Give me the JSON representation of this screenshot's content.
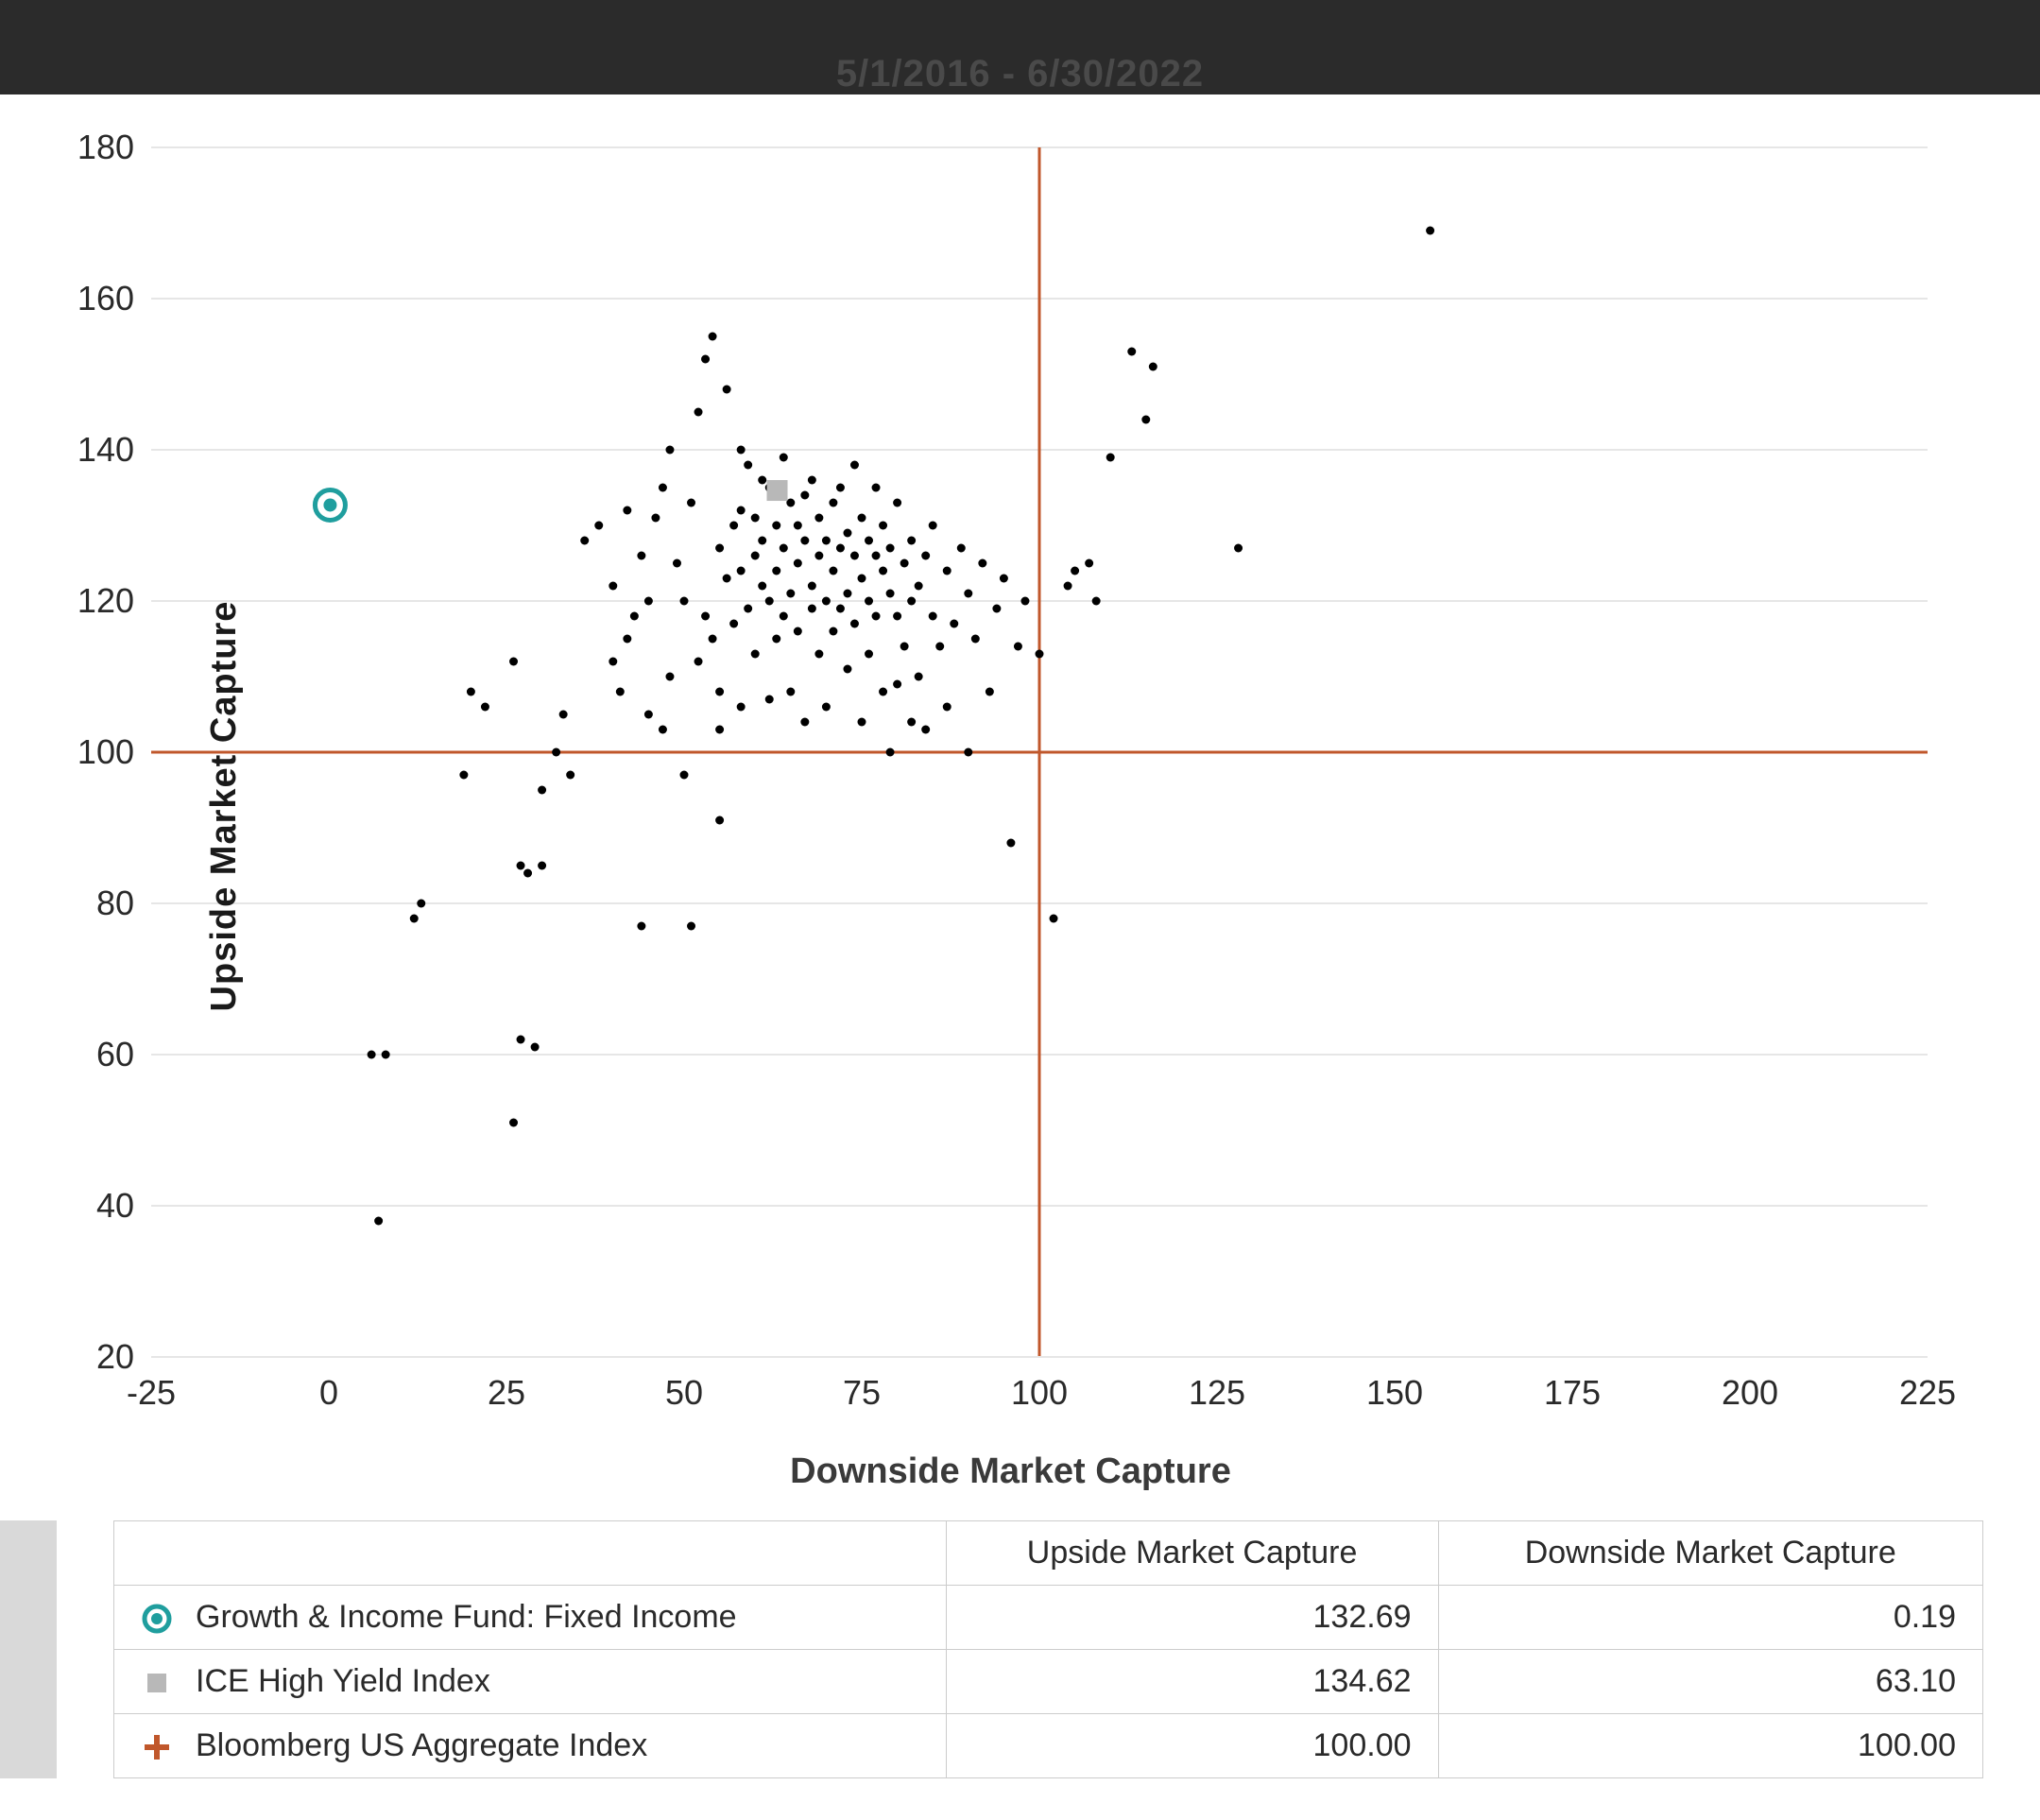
{
  "header": {
    "subtitle_cut": "5/1/2016 - 6/30/2022"
  },
  "chart": {
    "type": "scatter",
    "y_axis_label": "Upside Market Capture",
    "x_axis_label": "Downside Market Capture",
    "xlim": [
      -25,
      225
    ],
    "ylim": [
      20,
      180
    ],
    "xticks": [
      -25,
      0,
      25,
      50,
      75,
      100,
      125,
      150,
      175,
      200,
      225
    ],
    "yticks": [
      20,
      40,
      60,
      80,
      100,
      120,
      140,
      160,
      180
    ],
    "background_color": "#ffffff",
    "grid_color": "#e6e6e6",
    "axis_color": "#555555",
    "tick_font_size": 36,
    "tick_color": "#2a2a2a",
    "reference_lines": {
      "x": 100,
      "y": 100,
      "color": "#c0572b",
      "width": 3
    },
    "scatter_series": {
      "color": "#000000",
      "radius": 4.5,
      "points": [
        [
          7,
          38
        ],
        [
          12,
          78
        ],
        [
          13,
          80
        ],
        [
          6,
          60
        ],
        [
          8,
          60
        ],
        [
          22,
          106
        ],
        [
          20,
          108
        ],
        [
          26,
          112
        ],
        [
          27,
          85
        ],
        [
          28,
          84
        ],
        [
          30,
          85
        ],
        [
          19,
          97
        ],
        [
          32,
          100
        ],
        [
          34,
          97
        ],
        [
          30,
          95
        ],
        [
          33,
          105
        ],
        [
          27,
          62
        ],
        [
          29,
          61
        ],
        [
          26,
          51
        ],
        [
          36,
          128
        ],
        [
          38,
          130
        ],
        [
          40,
          122
        ],
        [
          41,
          108
        ],
        [
          42,
          115
        ],
        [
          43,
          118
        ],
        [
          44,
          126
        ],
        [
          45,
          120
        ],
        [
          46,
          131
        ],
        [
          47,
          135
        ],
        [
          48,
          140
        ],
        [
          48,
          110
        ],
        [
          49,
          125
        ],
        [
          50,
          97
        ],
        [
          50,
          120
        ],
        [
          51,
          133
        ],
        [
          52,
          145
        ],
        [
          52,
          112
        ],
        [
          53,
          118
        ],
        [
          53,
          152
        ],
        [
          54,
          115
        ],
        [
          54,
          155
        ],
        [
          55,
          127
        ],
        [
          55,
          108
        ],
        [
          55,
          91
        ],
        [
          56,
          123
        ],
        [
          56,
          148
        ],
        [
          57,
          130
        ],
        [
          57,
          117
        ],
        [
          58,
          124
        ],
        [
          58,
          140
        ],
        [
          58,
          106
        ],
        [
          59,
          119
        ],
        [
          59,
          138
        ],
        [
          60,
          126
        ],
        [
          60,
          131
        ],
        [
          60,
          113
        ],
        [
          61,
          122
        ],
        [
          61,
          128
        ],
        [
          61,
          136
        ],
        [
          62,
          135
        ],
        [
          62,
          120
        ],
        [
          62,
          107
        ],
        [
          63,
          130
        ],
        [
          63,
          115
        ],
        [
          63,
          124
        ],
        [
          64,
          127
        ],
        [
          64,
          118
        ],
        [
          64,
          139
        ],
        [
          65,
          121
        ],
        [
          65,
          133
        ],
        [
          65,
          108
        ],
        [
          66,
          125
        ],
        [
          66,
          130
        ],
        [
          66,
          116
        ],
        [
          67,
          128
        ],
        [
          67,
          134
        ],
        [
          67,
          104
        ],
        [
          68,
          122
        ],
        [
          68,
          119
        ],
        [
          68,
          136
        ],
        [
          69,
          126
        ],
        [
          69,
          113
        ],
        [
          69,
          131
        ],
        [
          70,
          120
        ],
        [
          70,
          128
        ],
        [
          70,
          106
        ],
        [
          71,
          124
        ],
        [
          71,
          133
        ],
        [
          71,
          116
        ],
        [
          72,
          127
        ],
        [
          72,
          119
        ],
        [
          72,
          135
        ],
        [
          73,
          121
        ],
        [
          73,
          129
        ],
        [
          73,
          111
        ],
        [
          74,
          126
        ],
        [
          74,
          117
        ],
        [
          74,
          138
        ],
        [
          75,
          123
        ],
        [
          75,
          131
        ],
        [
          75,
          104
        ],
        [
          76,
          120
        ],
        [
          76,
          128
        ],
        [
          76,
          113
        ],
        [
          77,
          126
        ],
        [
          77,
          118
        ],
        [
          77,
          135
        ],
        [
          78,
          124
        ],
        [
          78,
          108
        ],
        [
          78,
          130
        ],
        [
          79,
          121
        ],
        [
          79,
          127
        ],
        [
          79,
          100
        ],
        [
          80,
          118
        ],
        [
          80,
          133
        ],
        [
          80,
          109
        ],
        [
          81,
          125
        ],
        [
          81,
          114
        ],
        [
          82,
          128
        ],
        [
          82,
          104
        ],
        [
          82,
          120
        ],
        [
          83,
          122
        ],
        [
          83,
          110
        ],
        [
          84,
          126
        ],
        [
          84,
          103
        ],
        [
          85,
          118
        ],
        [
          85,
          130
        ],
        [
          86,
          114
        ],
        [
          87,
          124
        ],
        [
          87,
          106
        ],
        [
          88,
          117
        ],
        [
          89,
          127
        ],
        [
          90,
          121
        ],
        [
          90,
          100
        ],
        [
          91,
          115
        ],
        [
          92,
          125
        ],
        [
          93,
          108
        ],
        [
          94,
          119
        ],
        [
          95,
          123
        ],
        [
          96,
          88
        ],
        [
          97,
          114
        ],
        [
          98,
          120
        ],
        [
          100,
          113
        ],
        [
          102,
          78
        ],
        [
          104,
          122
        ],
        [
          105,
          124
        ],
        [
          107,
          125
        ],
        [
          108,
          120
        ],
        [
          110,
          139
        ],
        [
          113,
          153
        ],
        [
          115,
          144
        ],
        [
          116,
          151
        ],
        [
          128,
          127
        ],
        [
          155,
          169
        ],
        [
          44,
          77
        ],
        [
          51,
          77
        ],
        [
          40,
          112
        ],
        [
          42,
          132
        ],
        [
          55,
          103
        ],
        [
          58,
          132
        ],
        [
          45,
          105
        ],
        [
          47,
          103
        ]
      ]
    },
    "highlight_markers": [
      {
        "name": "growth-income-fund",
        "type": "ring-dot",
        "x": 0.19,
        "y": 132.69,
        "ring_color": "#1f9e9e",
        "ring_width": 5,
        "ring_radius": 16,
        "dot_color": "#1f9e9e",
        "dot_radius": 7
      },
      {
        "name": "ice-high-yield",
        "type": "square",
        "x": 63.1,
        "y": 134.62,
        "color": "#b8b8b8",
        "size": 22
      }
    ]
  },
  "table": {
    "columns": [
      "",
      "Upside Market Capture",
      "Downside Market Capture"
    ],
    "rows": [
      {
        "icon": "ring-dot",
        "icon_colors": {
          "ring": "#1f9e9e",
          "dot": "#1f9e9e"
        },
        "label": "Growth & Income Fund: Fixed Income",
        "upside": "132.69",
        "downside": "0.19"
      },
      {
        "icon": "square",
        "icon_colors": {
          "fill": "#b8b8b8"
        },
        "label": "ICE High Yield Index",
        "upside": "134.62",
        "downside": "63.10"
      },
      {
        "icon": "plus",
        "icon_colors": {
          "stroke": "#c0572b"
        },
        "label": "Bloomberg US Aggregate Index",
        "upside": "100.00",
        "downside": "100.00"
      }
    ]
  }
}
